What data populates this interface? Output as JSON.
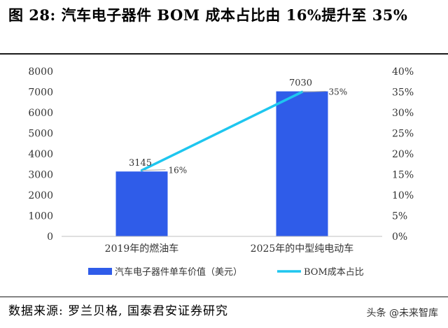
{
  "figure": {
    "title": "图 28:  汽车电子器件 BOM 成本占比由 16%提升至 35%",
    "source": "数据来源: 罗兰贝格, 国泰君安证券研究",
    "watermark": "头条 @未来智库"
  },
  "chart_data": {
    "type": "bar",
    "categories": [
      "2019年的燃油车",
      "2025年的中型纯电动车"
    ],
    "series": [
      {
        "name": "汽车电子器件单车价值（美元）",
        "type": "bar",
        "axis": "left",
        "values": [
          3145,
          7030
        ],
        "color": "#2f5ce9"
      },
      {
        "name": "BOM成本占比",
        "type": "line",
        "axis": "right",
        "values": [
          16,
          35
        ],
        "color": "#1ec6ef"
      }
    ],
    "bar_labels": [
      "3145",
      "7030"
    ],
    "line_labels": [
      "16%",
      "35%"
    ],
    "y_left": {
      "min": 0,
      "max": 8000,
      "step": 1000,
      "ticks": [
        "0",
        "1000",
        "2000",
        "3000",
        "4000",
        "5000",
        "6000",
        "7000",
        "8000"
      ]
    },
    "y_right": {
      "min": 0,
      "max": 40,
      "step": 5,
      "ticks": [
        "0%",
        "5%",
        "10%",
        "15%",
        "20%",
        "25%",
        "30%",
        "35%",
        "40%"
      ]
    },
    "legend": {
      "position": "bottom",
      "items": [
        "汽车电子器件单车价值（美元）",
        "BOM成本占比"
      ]
    },
    "grid": false
  }
}
